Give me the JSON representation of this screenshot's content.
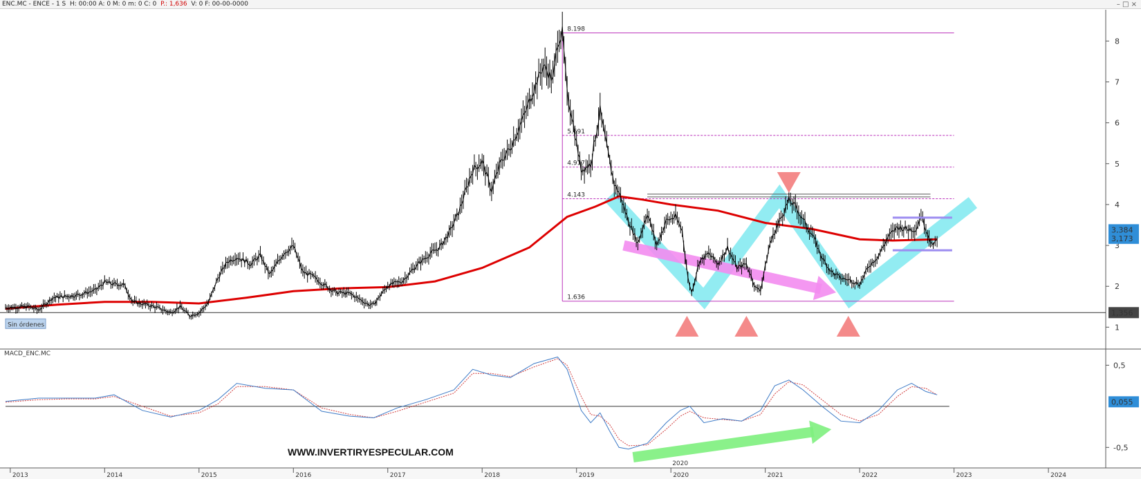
{
  "header": {
    "instrument": "ENC.MC - ENCE - 1 S",
    "ohlc_pre": "H: 00:00  A: 0  M: 0  m: 0  C: 0",
    "p_value": "P.: 1,636",
    "ohlc_post": "V: 0  F: 00-00-0000",
    "window_controls": [
      "minimize-icon",
      "maximize-icon",
      "close-icon"
    ]
  },
  "watermark": "WWW.INVERTIRYESPECULAR.COM",
  "colors": {
    "price": "#000000",
    "ma": "#dd0000",
    "fib": "#bb33bb",
    "cyan_zigzag": "#7fe9f0",
    "magenta_arrow": "#f38cf0",
    "green_arrow": "#7ef07e",
    "triangle": "#f48a8a",
    "macd": "#3b79c6",
    "signal": "#d03a3a",
    "label_blue": "#2f8ed8",
    "label_gray": "#444444",
    "range_lines": "#9c8cf0"
  },
  "chart_data": [
    {
      "type": "line",
      "title": "",
      "x_range": [
        2012.95,
        2024.6
      ],
      "ylim": [
        0.6,
        8.75
      ],
      "x_tick_labels": [
        "2013",
        "2014",
        "2015",
        "2016",
        "2017",
        "2018",
        "2019",
        "2020",
        "2021",
        "2022",
        "2023",
        "2024"
      ],
      "y_tick_labels": [
        "1",
        "2",
        "3",
        "4",
        "5",
        "6",
        "7",
        "8"
      ],
      "series": [
        {
          "role": "price",
          "points": [
            [
              2012.95,
              1.48
            ],
            [
              2013.2,
              1.5
            ],
            [
              2013.3,
              1.42
            ],
            [
              2013.45,
              1.72
            ],
            [
              2013.7,
              1.78
            ],
            [
              2013.9,
              1.9
            ],
            [
              2014.0,
              2.1
            ],
            [
              2014.1,
              2.05
            ],
            [
              2014.2,
              2.05
            ],
            [
              2014.3,
              1.62
            ],
            [
              2014.5,
              1.52
            ],
            [
              2014.7,
              1.36
            ],
            [
              2014.8,
              1.5
            ],
            [
              2014.9,
              1.28
            ],
            [
              2015.0,
              1.35
            ],
            [
              2015.1,
              1.6
            ],
            [
              2015.2,
              2.2
            ],
            [
              2015.3,
              2.6
            ],
            [
              2015.4,
              2.72
            ],
            [
              2015.55,
              2.55
            ],
            [
              2015.65,
              2.75
            ],
            [
              2015.75,
              2.28
            ],
            [
              2015.9,
              2.82
            ],
            [
              2016.0,
              2.98
            ],
            [
              2016.1,
              2.35
            ],
            [
              2016.2,
              2.25
            ],
            [
              2016.35,
              2.0
            ],
            [
              2016.45,
              1.85
            ],
            [
              2016.6,
              1.82
            ],
            [
              2016.8,
              1.55
            ],
            [
              2016.85,
              1.55
            ],
            [
              2017.0,
              2.02
            ],
            [
              2017.15,
              2.12
            ],
            [
              2017.3,
              2.5
            ],
            [
              2017.45,
              2.8
            ],
            [
              2017.55,
              2.95
            ],
            [
              2017.65,
              3.3
            ],
            [
              2017.75,
              3.8
            ],
            [
              2017.9,
              4.85
            ],
            [
              2018.0,
              5.05
            ],
            [
              2018.1,
              4.35
            ],
            [
              2018.2,
              5.05
            ],
            [
              2018.3,
              5.4
            ],
            [
              2018.45,
              6.2
            ],
            [
              2018.55,
              6.85
            ],
            [
              2018.65,
              7.4
            ],
            [
              2018.75,
              7.05
            ],
            [
              2018.8,
              8.0
            ],
            [
              2018.85,
              8.198
            ],
            [
              2018.9,
              6.7
            ],
            [
              2018.95,
              6.2
            ],
            [
              2019.0,
              5.5
            ],
            [
              2019.05,
              4.85
            ],
            [
              2019.15,
              5.0
            ],
            [
              2019.25,
              6.3
            ],
            [
              2019.32,
              5.4
            ],
            [
              2019.4,
              4.5
            ],
            [
              2019.45,
              4.3
            ],
            [
              2019.55,
              3.6
            ],
            [
              2019.65,
              3.05
            ],
            [
              2019.75,
              3.8
            ],
            [
              2019.85,
              3.0
            ],
            [
              2019.95,
              3.6
            ],
            [
              2020.05,
              3.7
            ],
            [
              2020.12,
              3.35
            ],
            [
              2020.18,
              2.2
            ],
            [
              2020.22,
              1.85
            ],
            [
              2020.3,
              2.6
            ],
            [
              2020.4,
              2.8
            ],
            [
              2020.5,
              2.55
            ],
            [
              2020.6,
              2.95
            ],
            [
              2020.7,
              2.45
            ],
            [
              2020.8,
              2.55
            ],
            [
              2020.9,
              1.95
            ],
            [
              2020.95,
              1.92
            ],
            [
              2021.05,
              3.05
            ],
            [
              2021.15,
              3.6
            ],
            [
              2021.25,
              4.1
            ],
            [
              2021.32,
              3.95
            ],
            [
              2021.42,
              3.55
            ],
            [
              2021.5,
              3.25
            ],
            [
              2021.6,
              2.7
            ],
            [
              2021.7,
              2.35
            ],
            [
              2021.8,
              2.2
            ],
            [
              2021.9,
              2.15
            ],
            [
              2022.0,
              2.05
            ],
            [
              2022.1,
              2.5
            ],
            [
              2022.2,
              2.75
            ],
            [
              2022.3,
              3.2
            ],
            [
              2022.4,
              3.45
            ],
            [
              2022.5,
              3.4
            ],
            [
              2022.6,
              3.4
            ],
            [
              2022.65,
              3.75
            ],
            [
              2022.72,
              3.3
            ],
            [
              2022.78,
              2.95
            ],
            [
              2022.82,
              3.2
            ]
          ]
        },
        {
          "role": "moving_average",
          "points": [
            [
              2012.95,
              1.45
            ],
            [
              2013.5,
              1.55
            ],
            [
              2014.0,
              1.62
            ],
            [
              2014.5,
              1.62
            ],
            [
              2015.0,
              1.58
            ],
            [
              2015.5,
              1.72
            ],
            [
              2016.0,
              1.88
            ],
            [
              2016.5,
              1.95
            ],
            [
              2017.0,
              1.98
            ],
            [
              2017.5,
              2.12
            ],
            [
              2018.0,
              2.45
            ],
            [
              2018.5,
              2.95
            ],
            [
              2018.9,
              3.7
            ],
            [
              2019.2,
              3.95
            ],
            [
              2019.45,
              4.2
            ],
            [
              2019.7,
              4.12
            ],
            [
              2020.0,
              4.0
            ],
            [
              2020.5,
              3.85
            ],
            [
              2021.0,
              3.55
            ],
            [
              2021.5,
              3.4
            ],
            [
              2022.0,
              3.15
            ],
            [
              2022.35,
              3.12
            ],
            [
              2022.82,
              3.15
            ]
          ]
        }
      ],
      "fib_levels": [
        {
          "price": 8.198,
          "label": "8.198"
        },
        {
          "price": 5.691,
          "label": "5.691"
        },
        {
          "price": 4.917,
          "label": "4.917"
        },
        {
          "price": 4.143,
          "label": "4.143"
        },
        {
          "price": 1.636,
          "label": "1.636"
        }
      ],
      "annotations": {
        "cyan_zigzag": [
          [
            2019.35,
            4.2
          ],
          [
            2020.35,
            1.7
          ],
          [
            2021.15,
            4.2
          ],
          [
            2021.9,
            1.7
          ],
          [
            2023.2,
            4.05
          ]
        ],
        "magenta_arrow": [
          [
            2019.5,
            3.0
          ],
          [
            2021.75,
            1.85
          ]
        ],
        "triangles_up": [
          2020.17,
          2020.8,
          2021.88
        ],
        "triangles_down": [
          2021.25
        ],
        "resistance_line": {
          "x": [
            2019.75,
            2022.75
          ],
          "price": 4.22
        },
        "range_lines": [
          {
            "x": [
              2022.35,
              2022.98
            ],
            "price": 3.68
          },
          {
            "x": [
              2022.35,
              2022.98
            ],
            "price": 2.88
          }
        ],
        "base_line_price": 1.356
      },
      "price_labels": [
        {
          "text": "3,384",
          "style": "blue"
        },
        {
          "text": "3,173",
          "style": "blue"
        },
        {
          "text": "1,356",
          "style": "gray"
        }
      ],
      "order_badge": "Sin órdenes"
    },
    {
      "type": "line",
      "title": "MACD_ENC.MC",
      "ylim": [
        -0.75,
        0.68
      ],
      "y_tick_labels": [
        "0,5",
        "-0,5"
      ],
      "value_label": "0,055",
      "series": [
        {
          "role": "macd",
          "points": [
            [
              2012.95,
              0.06
            ],
            [
              2013.3,
              0.1
            ],
            [
              2013.6,
              0.1
            ],
            [
              2013.9,
              0.1
            ],
            [
              2014.1,
              0.14
            ],
            [
              2014.4,
              -0.05
            ],
            [
              2014.7,
              -0.13
            ],
            [
              2015.0,
              -0.05
            ],
            [
              2015.2,
              0.08
            ],
            [
              2015.4,
              0.28
            ],
            [
              2015.7,
              0.22
            ],
            [
              2016.0,
              0.2
            ],
            [
              2016.3,
              -0.06
            ],
            [
              2016.6,
              -0.12
            ],
            [
              2016.85,
              -0.14
            ],
            [
              2017.1,
              -0.02
            ],
            [
              2017.4,
              0.08
            ],
            [
              2017.7,
              0.2
            ],
            [
              2017.9,
              0.45
            ],
            [
              2018.1,
              0.38
            ],
            [
              2018.3,
              0.35
            ],
            [
              2018.55,
              0.52
            ],
            [
              2018.8,
              0.6
            ],
            [
              2018.9,
              0.45
            ],
            [
              2019.05,
              -0.05
            ],
            [
              2019.15,
              -0.2
            ],
            [
              2019.25,
              -0.08
            ],
            [
              2019.35,
              -0.3
            ],
            [
              2019.45,
              -0.5
            ],
            [
              2019.55,
              -0.52
            ],
            [
              2019.75,
              -0.45
            ],
            [
              2019.95,
              -0.2
            ],
            [
              2020.1,
              -0.05
            ],
            [
              2020.2,
              0.0
            ],
            [
              2020.35,
              -0.2
            ],
            [
              2020.55,
              -0.15
            ],
            [
              2020.75,
              -0.18
            ],
            [
              2020.95,
              -0.05
            ],
            [
              2021.1,
              0.25
            ],
            [
              2021.25,
              0.32
            ],
            [
              2021.4,
              0.2
            ],
            [
              2021.6,
              0.0
            ],
            [
              2021.8,
              -0.18
            ],
            [
              2022.0,
              -0.2
            ],
            [
              2022.2,
              -0.05
            ],
            [
              2022.4,
              0.2
            ],
            [
              2022.55,
              0.28
            ],
            [
              2022.7,
              0.18
            ],
            [
              2022.82,
              0.14
            ]
          ]
        },
        {
          "role": "signal",
          "points": [
            [
              2012.95,
              0.05
            ],
            [
              2013.3,
              0.08
            ],
            [
              2013.6,
              0.09
            ],
            [
              2013.9,
              0.09
            ],
            [
              2014.1,
              0.12
            ],
            [
              2014.4,
              0.0
            ],
            [
              2014.7,
              -0.12
            ],
            [
              2015.0,
              -0.08
            ],
            [
              2015.2,
              0.03
            ],
            [
              2015.4,
              0.24
            ],
            [
              2015.7,
              0.24
            ],
            [
              2016.0,
              0.2
            ],
            [
              2016.3,
              -0.02
            ],
            [
              2016.6,
              -0.1
            ],
            [
              2016.85,
              -0.14
            ],
            [
              2017.1,
              -0.06
            ],
            [
              2017.4,
              0.05
            ],
            [
              2017.7,
              0.16
            ],
            [
              2017.9,
              0.4
            ],
            [
              2018.1,
              0.4
            ],
            [
              2018.3,
              0.36
            ],
            [
              2018.55,
              0.48
            ],
            [
              2018.8,
              0.58
            ],
            [
              2018.9,
              0.5
            ],
            [
              2019.05,
              0.12
            ],
            [
              2019.15,
              -0.1
            ],
            [
              2019.25,
              -0.12
            ],
            [
              2019.35,
              -0.22
            ],
            [
              2019.45,
              -0.4
            ],
            [
              2019.55,
              -0.48
            ],
            [
              2019.75,
              -0.47
            ],
            [
              2019.95,
              -0.28
            ],
            [
              2020.1,
              -0.12
            ],
            [
              2020.2,
              -0.06
            ],
            [
              2020.35,
              -0.14
            ],
            [
              2020.55,
              -0.16
            ],
            [
              2020.75,
              -0.18
            ],
            [
              2020.95,
              -0.1
            ],
            [
              2021.1,
              0.15
            ],
            [
              2021.25,
              0.3
            ],
            [
              2021.4,
              0.26
            ],
            [
              2021.6,
              0.08
            ],
            [
              2021.8,
              -0.1
            ],
            [
              2022.0,
              -0.18
            ],
            [
              2022.2,
              -0.1
            ],
            [
              2022.4,
              0.12
            ],
            [
              2022.55,
              0.24
            ],
            [
              2022.7,
              0.22
            ],
            [
              2022.82,
              0.14
            ]
          ]
        }
      ],
      "annotations": {
        "green_arrow": [
          [
            2019.6,
            -0.62
          ],
          [
            2021.7,
            -0.28
          ]
        ],
        "year_label": "2020"
      }
    }
  ]
}
